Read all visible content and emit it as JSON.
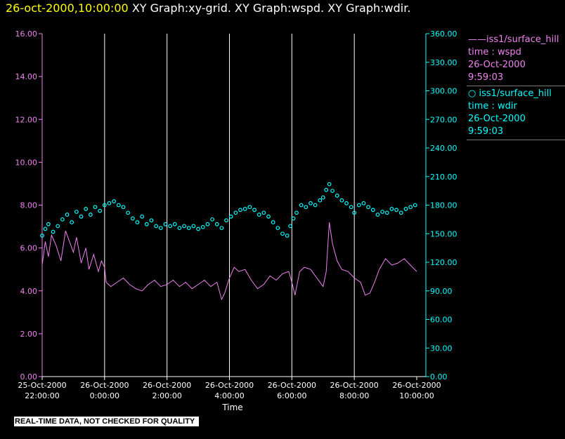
{
  "header": {
    "timestamp": "26-oct-2000,10:00:00",
    "titles": "XY Graph:xy-grid.  XY Graph:wspd.  XY Graph:wdir."
  },
  "legend": {
    "entry1": {
      "line1": "iss1/surface_hill",
      "line2": "time : wspd",
      "line3": "26-Oct-2000",
      "line4": "9:59:03"
    },
    "entry2": {
      "line1": "iss1/surface_hill",
      "line2": "time : wdir",
      "line3": "26-Oct-2000",
      "line4": "9:59:03"
    }
  },
  "disclaimer": "REAL-TIME DATA, NOT CHECKED FOR QUALITY",
  "colors": {
    "left_axis": "#ee82ee",
    "right_axis": "#00ffff",
    "grid": "#ffffff",
    "background": "#000000",
    "header_date": "#ffff00"
  },
  "chart_data": {
    "type": "line",
    "xlabel": "Time",
    "x_range_hours": [
      22,
      34
    ],
    "x_ticks": [
      {
        "date": "25-Oct-2000",
        "time": "22:00:00"
      },
      {
        "date": "26-Oct-2000",
        "time": "0:00:00"
      },
      {
        "date": "26-Oct-2000",
        "time": "2:00:00"
      },
      {
        "date": "26-Oct-2000",
        "time": "4:00:00"
      },
      {
        "date": "26-Oct-2000",
        "time": "6:00:00"
      },
      {
        "date": "26-Oct-2000",
        "time": "8:00:00"
      },
      {
        "date": "26-Oct-2000",
        "time": "10:00:00"
      }
    ],
    "y_left": {
      "ylim": [
        0,
        16
      ],
      "ticks": [
        "0.00",
        "2.00",
        "4.00",
        "6.00",
        "8.00",
        "10.00",
        "12.00",
        "14.00",
        "16.00"
      ]
    },
    "y_right": {
      "ylim": [
        0,
        360
      ],
      "ticks": [
        "0.00",
        "30.00",
        "60.00",
        "90.00",
        "120.00",
        "150.00",
        "180.00",
        "210.00",
        "240.00",
        "270.00",
        "300.00",
        "330.00",
        "360.00"
      ]
    },
    "vertical_grid_hours": [
      24,
      26,
      28,
      30,
      32
    ],
    "series": [
      {
        "name": "iss1/surface_hill time : wspd",
        "axis": "left",
        "style": "line",
        "color": "#ee82ee",
        "points": [
          [
            22.0,
            5.2
          ],
          [
            22.1,
            6.3
          ],
          [
            22.2,
            5.6
          ],
          [
            22.3,
            6.6
          ],
          [
            22.45,
            6.1
          ],
          [
            22.6,
            5.4
          ],
          [
            22.75,
            6.8
          ],
          [
            22.9,
            6.2
          ],
          [
            23.0,
            5.8
          ],
          [
            23.1,
            6.5
          ],
          [
            23.25,
            5.3
          ],
          [
            23.4,
            6.0
          ],
          [
            23.5,
            5.0
          ],
          [
            23.65,
            5.7
          ],
          [
            23.8,
            4.9
          ],
          [
            23.9,
            5.4
          ],
          [
            24.0,
            5.1
          ],
          [
            24.05,
            4.4
          ],
          [
            24.2,
            4.2
          ],
          [
            24.4,
            4.4
          ],
          [
            24.6,
            4.6
          ],
          [
            24.8,
            4.3
          ],
          [
            25.0,
            4.1
          ],
          [
            25.2,
            4.0
          ],
          [
            25.4,
            4.3
          ],
          [
            25.6,
            4.5
          ],
          [
            25.8,
            4.2
          ],
          [
            26.0,
            4.3
          ],
          [
            26.2,
            4.5
          ],
          [
            26.4,
            4.2
          ],
          [
            26.6,
            4.4
          ],
          [
            26.8,
            4.1
          ],
          [
            27.0,
            4.3
          ],
          [
            27.2,
            4.5
          ],
          [
            27.4,
            4.2
          ],
          [
            27.6,
            4.4
          ],
          [
            27.75,
            3.6
          ],
          [
            27.85,
            3.9
          ],
          [
            28.0,
            4.6
          ],
          [
            28.15,
            5.1
          ],
          [
            28.3,
            4.9
          ],
          [
            28.5,
            5.0
          ],
          [
            28.7,
            4.5
          ],
          [
            28.9,
            4.1
          ],
          [
            29.1,
            4.3
          ],
          [
            29.3,
            4.7
          ],
          [
            29.5,
            4.5
          ],
          [
            29.7,
            4.8
          ],
          [
            29.9,
            4.9
          ],
          [
            30.0,
            4.4
          ],
          [
            30.1,
            3.8
          ],
          [
            30.25,
            4.9
          ],
          [
            30.4,
            5.1
          ],
          [
            30.6,
            5.0
          ],
          [
            30.8,
            4.6
          ],
          [
            31.0,
            4.2
          ],
          [
            31.1,
            4.9
          ],
          [
            31.2,
            7.2
          ],
          [
            31.3,
            6.2
          ],
          [
            31.45,
            5.4
          ],
          [
            31.6,
            5.0
          ],
          [
            31.8,
            4.9
          ],
          [
            32.0,
            4.6
          ],
          [
            32.2,
            4.4
          ],
          [
            32.35,
            3.8
          ],
          [
            32.5,
            3.9
          ],
          [
            32.65,
            4.4
          ],
          [
            32.8,
            5.0
          ],
          [
            33.0,
            5.5
          ],
          [
            33.2,
            5.2
          ],
          [
            33.4,
            5.3
          ],
          [
            33.6,
            5.5
          ],
          [
            33.8,
            5.2
          ],
          [
            34.0,
            4.9
          ]
        ]
      },
      {
        "name": "iss1/surface_hill time : wdir",
        "axis": "right",
        "style": "markers",
        "color": "#00ffff",
        "points": [
          [
            22.0,
            148
          ],
          [
            22.1,
            155
          ],
          [
            22.2,
            160
          ],
          [
            22.35,
            152
          ],
          [
            22.5,
            158
          ],
          [
            22.65,
            165
          ],
          [
            22.8,
            170
          ],
          [
            22.95,
            162
          ],
          [
            23.1,
            173
          ],
          [
            23.25,
            168
          ],
          [
            23.4,
            176
          ],
          [
            23.55,
            170
          ],
          [
            23.7,
            178
          ],
          [
            23.85,
            174
          ],
          [
            24.0,
            180
          ],
          [
            24.15,
            182
          ],
          [
            24.3,
            184
          ],
          [
            24.45,
            180
          ],
          [
            24.6,
            178
          ],
          [
            24.75,
            172
          ],
          [
            24.9,
            166
          ],
          [
            25.05,
            162
          ],
          [
            25.2,
            168
          ],
          [
            25.35,
            160
          ],
          [
            25.5,
            164
          ],
          [
            25.65,
            158
          ],
          [
            25.8,
            156
          ],
          [
            25.95,
            160
          ],
          [
            26.1,
            158
          ],
          [
            26.25,
            160
          ],
          [
            26.4,
            156
          ],
          [
            26.55,
            158
          ],
          [
            26.7,
            156
          ],
          [
            26.85,
            158
          ],
          [
            27.0,
            155
          ],
          [
            27.15,
            157
          ],
          [
            27.3,
            160
          ],
          [
            27.45,
            165
          ],
          [
            27.6,
            160
          ],
          [
            27.75,
            156
          ],
          [
            27.9,
            164
          ],
          [
            28.05,
            168
          ],
          [
            28.2,
            172
          ],
          [
            28.35,
            175
          ],
          [
            28.5,
            176
          ],
          [
            28.65,
            178
          ],
          [
            28.8,
            175
          ],
          [
            28.95,
            170
          ],
          [
            29.1,
            172
          ],
          [
            29.25,
            168
          ],
          [
            29.4,
            162
          ],
          [
            29.55,
            156
          ],
          [
            29.7,
            150
          ],
          [
            29.85,
            148
          ],
          [
            29.95,
            158
          ],
          [
            30.05,
            166
          ],
          [
            30.15,
            172
          ],
          [
            30.3,
            180
          ],
          [
            30.45,
            178
          ],
          [
            30.6,
            182
          ],
          [
            30.75,
            180
          ],
          [
            30.9,
            185
          ],
          [
            31.0,
            188
          ],
          [
            31.1,
            196
          ],
          [
            31.2,
            202
          ],
          [
            31.3,
            195
          ],
          [
            31.45,
            190
          ],
          [
            31.6,
            185
          ],
          [
            31.75,
            182
          ],
          [
            31.9,
            178
          ],
          [
            32.0,
            172
          ],
          [
            32.15,
            180
          ],
          [
            32.3,
            182
          ],
          [
            32.45,
            178
          ],
          [
            32.6,
            175
          ],
          [
            32.75,
            170
          ],
          [
            32.9,
            173
          ],
          [
            33.05,
            172
          ],
          [
            33.2,
            176
          ],
          [
            33.35,
            175
          ],
          [
            33.5,
            172
          ],
          [
            33.65,
            176
          ],
          [
            33.8,
            178
          ],
          [
            33.95,
            180
          ]
        ]
      }
    ]
  }
}
